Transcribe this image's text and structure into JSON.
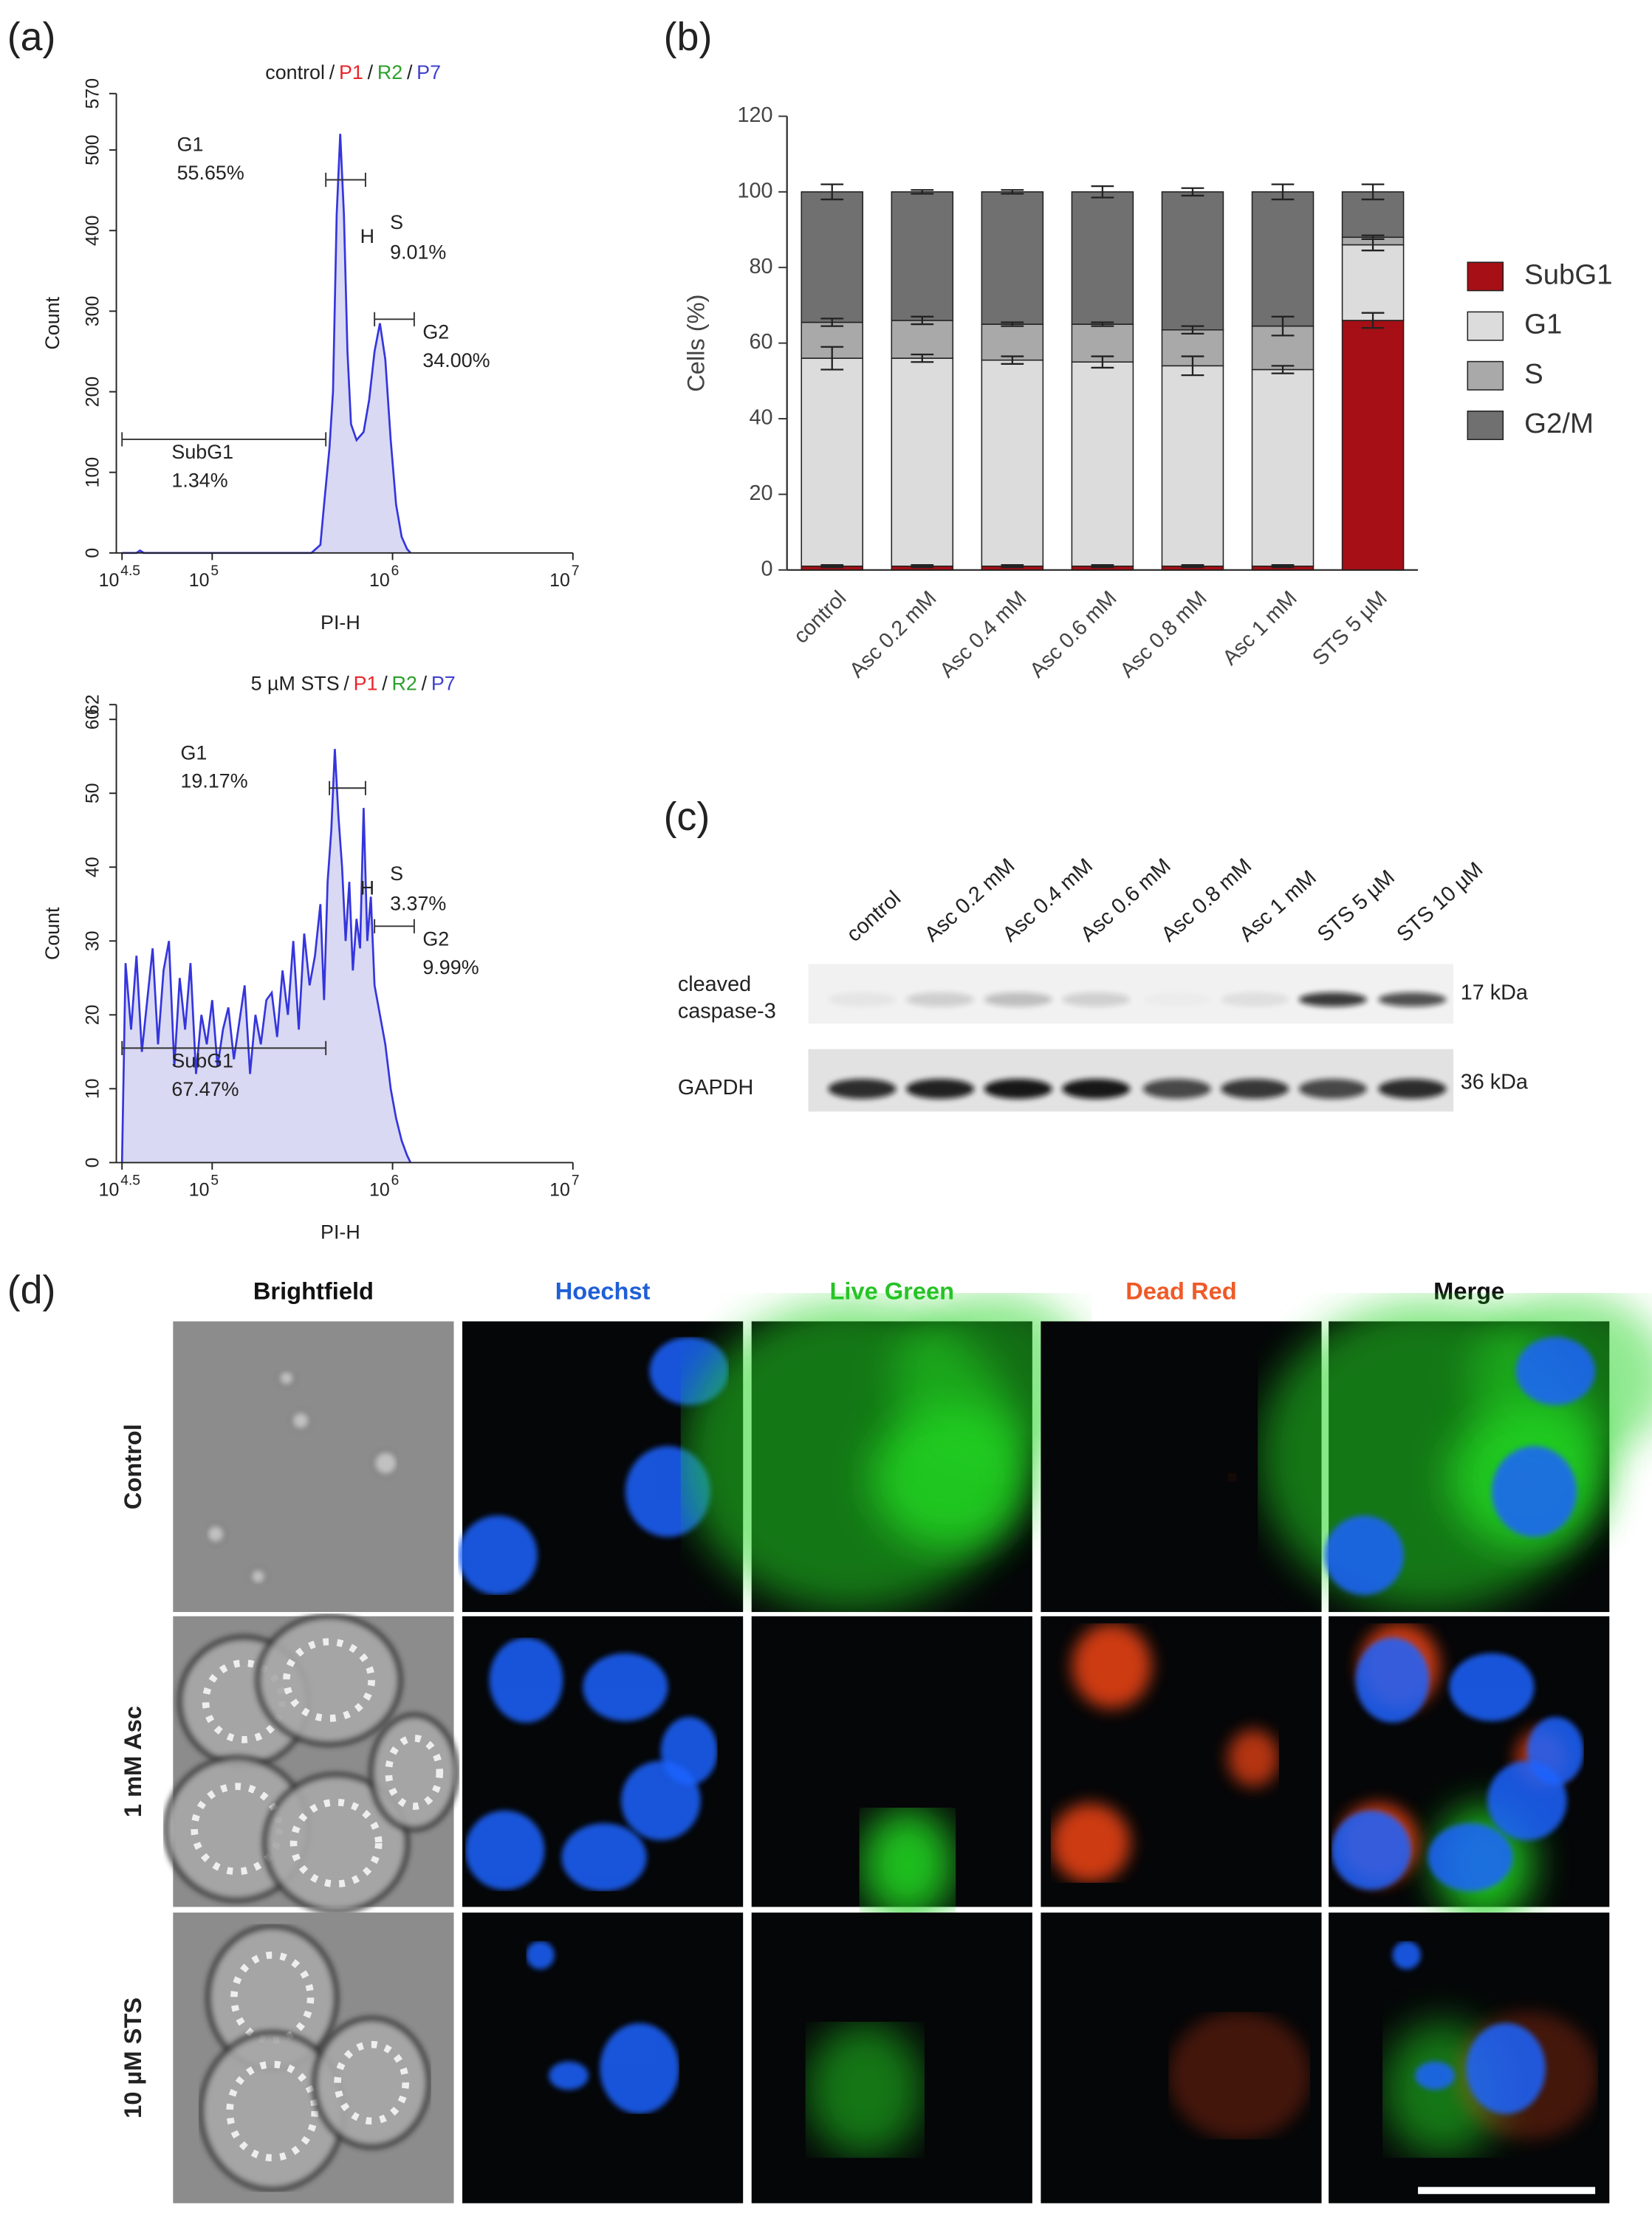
{
  "panel_labels": [
    "(a)",
    "(b)",
    "(c)",
    "(d)"
  ],
  "chart_data": [
    {
      "type": "line",
      "title": [
        {
          "text": "control",
          "color": "#222222"
        },
        {
          "text": "/",
          "color": "#222222"
        },
        {
          "text": "P1",
          "color": "#e8252a"
        },
        {
          "text": "/",
          "color": "#222222"
        },
        {
          "text": "R2",
          "color": "#2ca02c"
        },
        {
          "text": "/",
          "color": "#222222"
        },
        {
          "text": "P7",
          "color": "#4040d0"
        }
      ],
      "xlabel": "PI-H",
      "ylabel": "Count",
      "color": "#3535dd",
      "fill": "#d9d9f3",
      "x": [
        4.5,
        4.58,
        4.6,
        4.62,
        4.8,
        5.0,
        5.3,
        5.55,
        5.6,
        5.62,
        5.65,
        5.67,
        5.69,
        5.71,
        5.73,
        5.75,
        5.77,
        5.8,
        5.84,
        5.87,
        5.9,
        5.93,
        5.96,
        5.99,
        6.02,
        6.05,
        6.08,
        6.1
      ],
      "values": [
        0,
        0,
        3,
        0,
        0,
        0,
        0,
        0,
        10,
        60,
        130,
        200,
        420,
        520,
        420,
        250,
        160,
        140,
        150,
        190,
        250,
        285,
        240,
        140,
        60,
        20,
        5,
        0
      ],
      "xlim": [
        4.5,
        7
      ],
      "xticks": [
        {
          "value": 4.5,
          "label": "10",
          "exponent": "4.5"
        },
        {
          "value": 5,
          "label": "10",
          "exponent": "5"
        },
        {
          "value": 6,
          "label": "10",
          "exponent": "6"
        },
        {
          "value": 7,
          "label": "10",
          "exponent": "7"
        }
      ],
      "ylim": [
        0,
        570
      ],
      "yticks": [
        0,
        100,
        200,
        300,
        400,
        500,
        570
      ],
      "gates": [
        {
          "name": "G1",
          "label": "55.65%",
          "x": [
            5.63,
            5.85
          ],
          "y": 463
        },
        {
          "name": "S",
          "marker": "H",
          "label": "9.01%",
          "x": [
            5.86
          ],
          "y": 391
        },
        {
          "name": "G2",
          "label": "34.00%",
          "x": [
            5.9,
            6.12
          ],
          "y": 290
        },
        {
          "name": "SubG1",
          "label": "1.34%",
          "x": [
            4.5,
            5.63
          ],
          "y": 141
        }
      ]
    },
    {
      "type": "line",
      "title": [
        {
          "text": "5 µM STS",
          "color": "#222222"
        },
        {
          "text": "/",
          "color": "#222222"
        },
        {
          "text": "P1",
          "color": "#e8252a"
        },
        {
          "text": "/",
          "color": "#222222"
        },
        {
          "text": "R2",
          "color": "#2ca02c"
        },
        {
          "text": "/",
          "color": "#222222"
        },
        {
          "text": "P7",
          "color": "#4040d0"
        }
      ],
      "xlabel": "PI-H",
      "ylabel": "Count",
      "color": "#3535dd",
      "fill": "#d9d9f3",
      "x": [
        4.5,
        4.52,
        4.55,
        4.58,
        4.61,
        4.64,
        4.67,
        4.7,
        4.73,
        4.76,
        4.79,
        4.82,
        4.85,
        4.88,
        4.91,
        4.94,
        4.97,
        5.0,
        5.03,
        5.06,
        5.09,
        5.12,
        5.15,
        5.18,
        5.21,
        5.24,
        5.27,
        5.3,
        5.33,
        5.36,
        5.39,
        5.42,
        5.45,
        5.48,
        5.51,
        5.54,
        5.57,
        5.6,
        5.62,
        5.64,
        5.66,
        5.68,
        5.7,
        5.72,
        5.74,
        5.76,
        5.78,
        5.8,
        5.82,
        5.84,
        5.86,
        5.88,
        5.9,
        5.93,
        5.96,
        5.99,
        6.02,
        6.05,
        6.08,
        6.1
      ],
      "values": [
        0,
        27,
        18,
        28,
        15,
        22,
        29,
        16,
        26,
        30,
        13,
        25,
        18,
        27,
        12,
        20,
        16,
        22,
        13,
        18,
        21,
        14,
        19,
        24,
        12,
        20,
        16,
        22,
        23,
        17,
        26,
        20,
        30,
        18,
        31,
        24,
        28,
        35,
        22,
        38,
        45,
        56,
        47,
        40,
        30,
        38,
        26,
        33,
        29,
        48,
        30,
        36,
        24,
        20,
        16,
        10,
        6,
        3,
        1,
        0
      ],
      "xlim": [
        4.5,
        7
      ],
      "xticks": [
        {
          "value": 4.5,
          "label": "10",
          "exponent": "4.5"
        },
        {
          "value": 5,
          "label": "10",
          "exponent": "5"
        },
        {
          "value": 6,
          "label": "10",
          "exponent": "6"
        },
        {
          "value": 7,
          "label": "10",
          "exponent": "7"
        }
      ],
      "ylim": [
        0,
        62
      ],
      "yticks": [
        0,
        10,
        20,
        30,
        40,
        50,
        60,
        62
      ],
      "gates": [
        {
          "name": "G1",
          "label": "19.17%",
          "x": [
            5.65,
            5.85
          ],
          "y": 50.7
        },
        {
          "name": "S",
          "marker": "H",
          "label": "3.37%",
          "x": [
            5.86
          ],
          "y": 37
        },
        {
          "name": "G2",
          "label": "9.99%",
          "x": [
            5.9,
            6.12
          ],
          "y": 32
        },
        {
          "name": "SubG1",
          "label": "67.47%",
          "x": [
            4.5,
            5.63
          ],
          "y": 15.5
        }
      ]
    },
    {
      "type": "stacked_bar",
      "ylabel": "Cells (%)",
      "categories": [
        "control",
        "Asc 0.2 mM",
        "Asc 0.4 mM",
        "Asc 0.6 mM",
        "Asc 0.8 mM",
        "Asc 1 mM",
        "STS 5 µM"
      ],
      "series": [
        {
          "name": "SubG1",
          "color": "#a50f15",
          "values": [
            1,
            1,
            1,
            1,
            1,
            1,
            66
          ],
          "errors": [
            0.3,
            0.3,
            0.3,
            0.3,
            0.3,
            0.3,
            2
          ]
        },
        {
          "name": "G1",
          "color": "#dcdcdc",
          "values": [
            55,
            55,
            54.5,
            54,
            53,
            52,
            20
          ],
          "errors": [
            3,
            1,
            1,
            1.5,
            2.5,
            1,
            1.5
          ]
        },
        {
          "name": "S",
          "color": "#a9a9a9",
          "values": [
            9.5,
            10,
            9.5,
            10,
            9.5,
            11.5,
            2
          ],
          "errors": [
            1,
            1,
            0.5,
            0.5,
            1,
            2.5,
            0.5
          ]
        },
        {
          "name": "G2/M",
          "color": "#707070",
          "values": [
            34.5,
            34,
            35,
            35,
            36.5,
            35.5,
            12
          ],
          "errors": [
            2,
            0.5,
            0.5,
            1.5,
            1,
            2,
            2
          ]
        }
      ],
      "ylim": [
        0,
        120
      ],
      "yticks": [
        0,
        20,
        40,
        60,
        80,
        100,
        120
      ],
      "legend": "right"
    }
  ],
  "western_blot": {
    "lanes": [
      "control",
      "Asc 0.2 mM",
      "Asc 0.4 mM",
      "Asc 0.6 mM",
      "Asc 0.8 mM",
      "Asc 1 mM",
      "STS 5 µM",
      "STS 10 µM"
    ],
    "rows": [
      {
        "label": [
          "cleaved",
          "caspase-3"
        ],
        "marker": "17 kDa"
      },
      {
        "label": [
          "GAPDH"
        ],
        "marker": "36 kDa"
      }
    ]
  },
  "microscopy": {
    "columns": [
      {
        "label": "Brightfield",
        "color": "#111111"
      },
      {
        "label": "Hoechst",
        "color": "#1f5fd6"
      },
      {
        "label": "Live Green",
        "color": "#27c227"
      },
      {
        "label": "Dead Red",
        "color": "#ef5a28"
      },
      {
        "label": "Merge",
        "color": "#111111"
      }
    ],
    "rows": [
      "Control",
      "1 mM Asc",
      "10 µM STS"
    ]
  }
}
